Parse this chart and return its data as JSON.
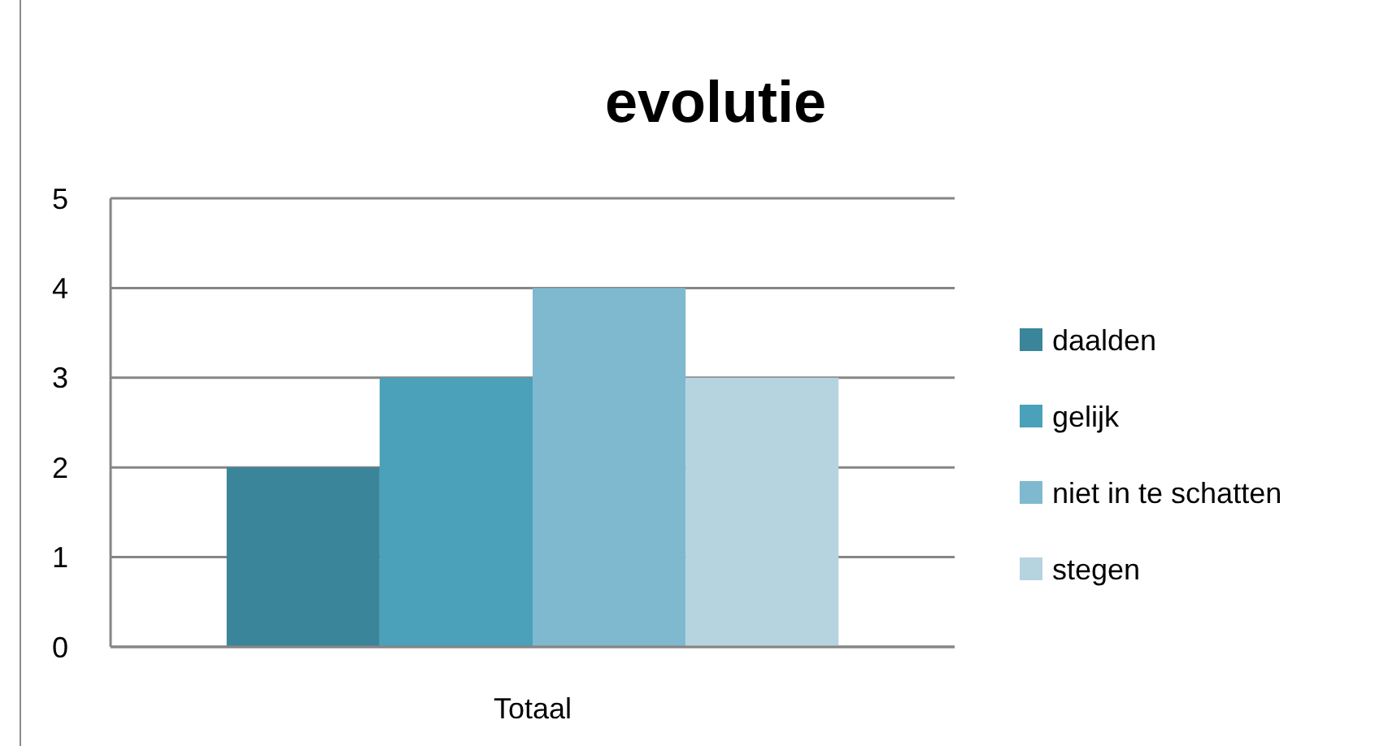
{
  "chart_data": {
    "type": "bar",
    "title": "evolutie",
    "categories": [
      "Totaal"
    ],
    "series": [
      {
        "name": "daalden",
        "color": "#3a8599",
        "values": [
          2
        ]
      },
      {
        "name": "gelijk",
        "color": "#4aa1b9",
        "values": [
          3
        ]
      },
      {
        "name": "niet in te schatten",
        "color": "#7fb9cf",
        "values": [
          4
        ]
      },
      {
        "name": "stegen",
        "color": "#b6d4df",
        "values": [
          3
        ]
      }
    ],
    "ylim": [
      0,
      5
    ],
    "yticks": [
      0,
      1,
      2,
      3,
      4,
      5
    ],
    "grid": "y",
    "legend": "right"
  }
}
